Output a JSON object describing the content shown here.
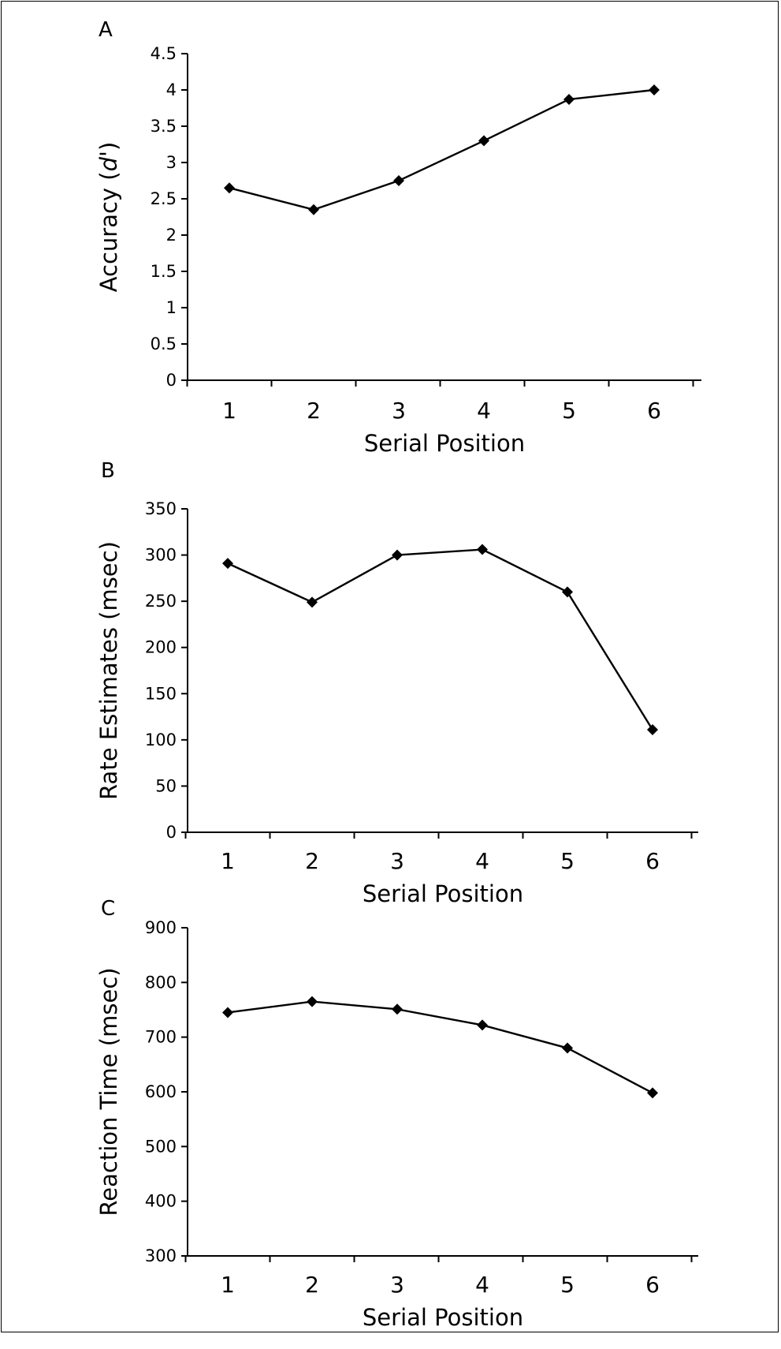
{
  "chart_data": [
    {
      "type": "line",
      "panel_label": "A",
      "x": [
        1,
        2,
        3,
        4,
        5,
        6
      ],
      "values": [
        2.65,
        2.35,
        2.75,
        3.3,
        3.87,
        4.0
      ],
      "xlabel": "Serial Position",
      "ylabel": "Accuracy (d')",
      "ylabel_parts": [
        "Accuracy (",
        "d",
        "')"
      ],
      "ylim": [
        0,
        4.5
      ],
      "yticks": [
        0,
        0.5,
        1,
        1.5,
        2,
        2.5,
        3,
        3.5,
        4,
        4.5
      ],
      "ytick_labels": [
        "0",
        "0.5",
        "1",
        "1.5",
        "2",
        "2.5",
        "3",
        "3.5",
        "4",
        "4.5"
      ],
      "xtick_labels": [
        "1",
        "2",
        "3",
        "4",
        "5",
        "6"
      ],
      "marker": "diamond",
      "grid": false
    },
    {
      "type": "line",
      "panel_label": "B",
      "x": [
        1,
        2,
        3,
        4,
        5,
        6
      ],
      "values": [
        291,
        249,
        300,
        306,
        260,
        111
      ],
      "xlabel": "Serial Position",
      "ylabel": "Rate Estimates (msec)",
      "ylim": [
        0,
        350
      ],
      "yticks": [
        0,
        50,
        100,
        150,
        200,
        250,
        300,
        350
      ],
      "ytick_labels": [
        "0",
        "50",
        "100",
        "150",
        "200",
        "250",
        "300",
        "350"
      ],
      "xtick_labels": [
        "1",
        "2",
        "3",
        "4",
        "5",
        "6"
      ],
      "marker": "diamond",
      "grid": false
    },
    {
      "type": "line",
      "panel_label": "C",
      "x": [
        1,
        2,
        3,
        4,
        5,
        6
      ],
      "values": [
        745,
        765,
        751,
        722,
        680,
        598
      ],
      "xlabel": "Serial Position",
      "ylabel": "Reaction Time (msec)",
      "ylim": [
        300,
        900
      ],
      "yticks": [
        300,
        400,
        500,
        600,
        700,
        800,
        900
      ],
      "ytick_labels": [
        "300",
        "400",
        "500",
        "600",
        "700",
        "800",
        "900"
      ],
      "xtick_labels": [
        "1",
        "2",
        "3",
        "4",
        "5",
        "6"
      ],
      "marker": "diamond",
      "grid": false
    }
  ]
}
